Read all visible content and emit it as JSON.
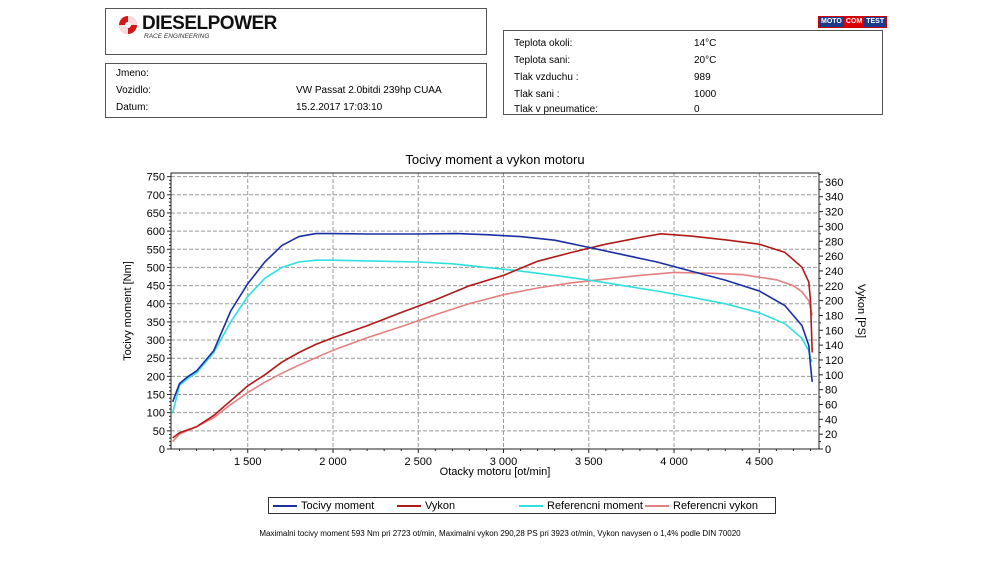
{
  "header": {
    "brand": "DIESELPOWER",
    "brand_sub": "RACE ENGINEERING",
    "badge": [
      "MOTO",
      "COM",
      "TEST"
    ]
  },
  "info": {
    "rows": [
      {
        "label": "Jmeno:",
        "value": ""
      },
      {
        "label": "Vozidlo:",
        "value": "VW Passat 2.0bitdi 239hp CUAA"
      },
      {
        "label": "Datum:",
        "value": "15.2.2017 17:03:10"
      }
    ]
  },
  "conditions": {
    "rows": [
      {
        "label": "Teplota okoli:",
        "value": "14°C"
      },
      {
        "label": "Teplota sani:",
        "value": "20°C"
      },
      {
        "label": "Tlak vzduchu :",
        "value": "989"
      },
      {
        "label": "Tlak sani :",
        "value": "1000"
      },
      {
        "label": "Tlak v pneumatice:",
        "value": "0"
      }
    ]
  },
  "colors": {
    "torque": "#1a2ea6",
    "power": "#b01a1a",
    "ref_torque": "#2fe0e0",
    "ref_power": "#e58080",
    "grid": "#9a9a9a"
  },
  "chart_data": {
    "type": "line",
    "title": "Tocivy moment a vykon motoru",
    "xlabel": "Otacky motoru [ot/min]",
    "ylabel": "Tocivy moment [Nm]",
    "y2label": "Vykon [PS]",
    "xlim": [
      1050,
      4850
    ],
    "ylim": [
      0,
      760
    ],
    "y2lim": [
      0,
      372
    ],
    "x_ticks": [
      1500,
      2000,
      2500,
      3000,
      3500,
      4000,
      4500
    ],
    "x_tick_labels": [
      "1 500",
      "2 000",
      "2 500",
      "3 000",
      "3 500",
      "4 000",
      "4 500"
    ],
    "y_ticks": [
      0,
      50,
      100,
      150,
      200,
      250,
      300,
      350,
      400,
      450,
      500,
      550,
      600,
      650,
      700,
      750
    ],
    "y2_ticks": [
      0,
      20,
      40,
      60,
      80,
      100,
      120,
      140,
      160,
      180,
      200,
      220,
      240,
      260,
      280,
      300,
      320,
      340,
      360
    ],
    "grid": true,
    "legend_position": "bottom",
    "series": [
      {
        "name": "Tocivy moment",
        "axis": "left",
        "x": [
          1060,
          1100,
          1150,
          1200,
          1300,
          1400,
          1500,
          1600,
          1700,
          1800,
          1900,
          2000,
          2200,
          2500,
          2723,
          2900,
          3100,
          3300,
          3500,
          3700,
          3900,
          4100,
          4300,
          4500,
          4650,
          4750,
          4790,
          4800,
          4810
        ],
        "y": [
          130,
          180,
          200,
          215,
          270,
          380,
          455,
          515,
          560,
          585,
          593,
          593,
          592,
          592,
          593,
          590,
          585,
          575,
          555,
          535,
          515,
          490,
          465,
          435,
          395,
          340,
          285,
          230,
          185
        ]
      },
      {
        "name": "Vykon",
        "axis": "right",
        "x": [
          1060,
          1100,
          1200,
          1300,
          1400,
          1500,
          1600,
          1700,
          1800,
          1900,
          2000,
          2200,
          2400,
          2600,
          2800,
          3000,
          3200,
          3400,
          3600,
          3800,
          3923,
          4100,
          4300,
          4500,
          4650,
          4750,
          4790,
          4800,
          4810
        ],
        "y": [
          15,
          22,
          30,
          45,
          65,
          85,
          100,
          117,
          130,
          141,
          150,
          166,
          184,
          201,
          220,
          234,
          253,
          265,
          276,
          285,
          290,
          287,
          282,
          276,
          265,
          245,
          225,
          200,
          130
        ]
      },
      {
        "name": "Referencni moment",
        "axis": "left",
        "x": [
          1060,
          1100,
          1150,
          1200,
          1300,
          1400,
          1500,
          1600,
          1700,
          1800,
          1900,
          2000,
          2200,
          2500,
          2700,
          2900,
          3100,
          3300,
          3500,
          3700,
          3900,
          4100,
          4300,
          4500,
          4650,
          4750,
          4790,
          4800,
          4810
        ],
        "y": [
          100,
          175,
          195,
          210,
          265,
          350,
          420,
          470,
          500,
          515,
          520,
          520,
          518,
          515,
          510,
          500,
          490,
          478,
          465,
          450,
          435,
          418,
          400,
          375,
          345,
          305,
          270,
          250,
          240
        ]
      },
      {
        "name": "Referencni vykon",
        "axis": "right",
        "x": [
          1060,
          1100,
          1200,
          1300,
          1400,
          1500,
          1600,
          1700,
          1800,
          1900,
          2000,
          2200,
          2400,
          2600,
          2800,
          3000,
          3200,
          3400,
          3600,
          3800,
          4000,
          4200,
          4400,
          4600,
          4700,
          4750,
          4790,
          4800,
          4810
        ],
        "y": [
          10,
          20,
          30,
          42,
          60,
          76,
          90,
          102,
          113,
          123,
          133,
          150,
          165,
          181,
          196,
          208,
          217,
          224,
          229,
          234,
          238,
          237,
          235,
          228,
          220,
          212,
          200,
          190,
          180
        ]
      }
    ]
  },
  "footer": {
    "text": "Maximalni tocivy moment 593 Nm pri 2723 ot/min,  Maximalni vykon 290,28 PS pri 3923 ot/min,  Vykon navysen o 1,4% podle DIN 70020"
  }
}
